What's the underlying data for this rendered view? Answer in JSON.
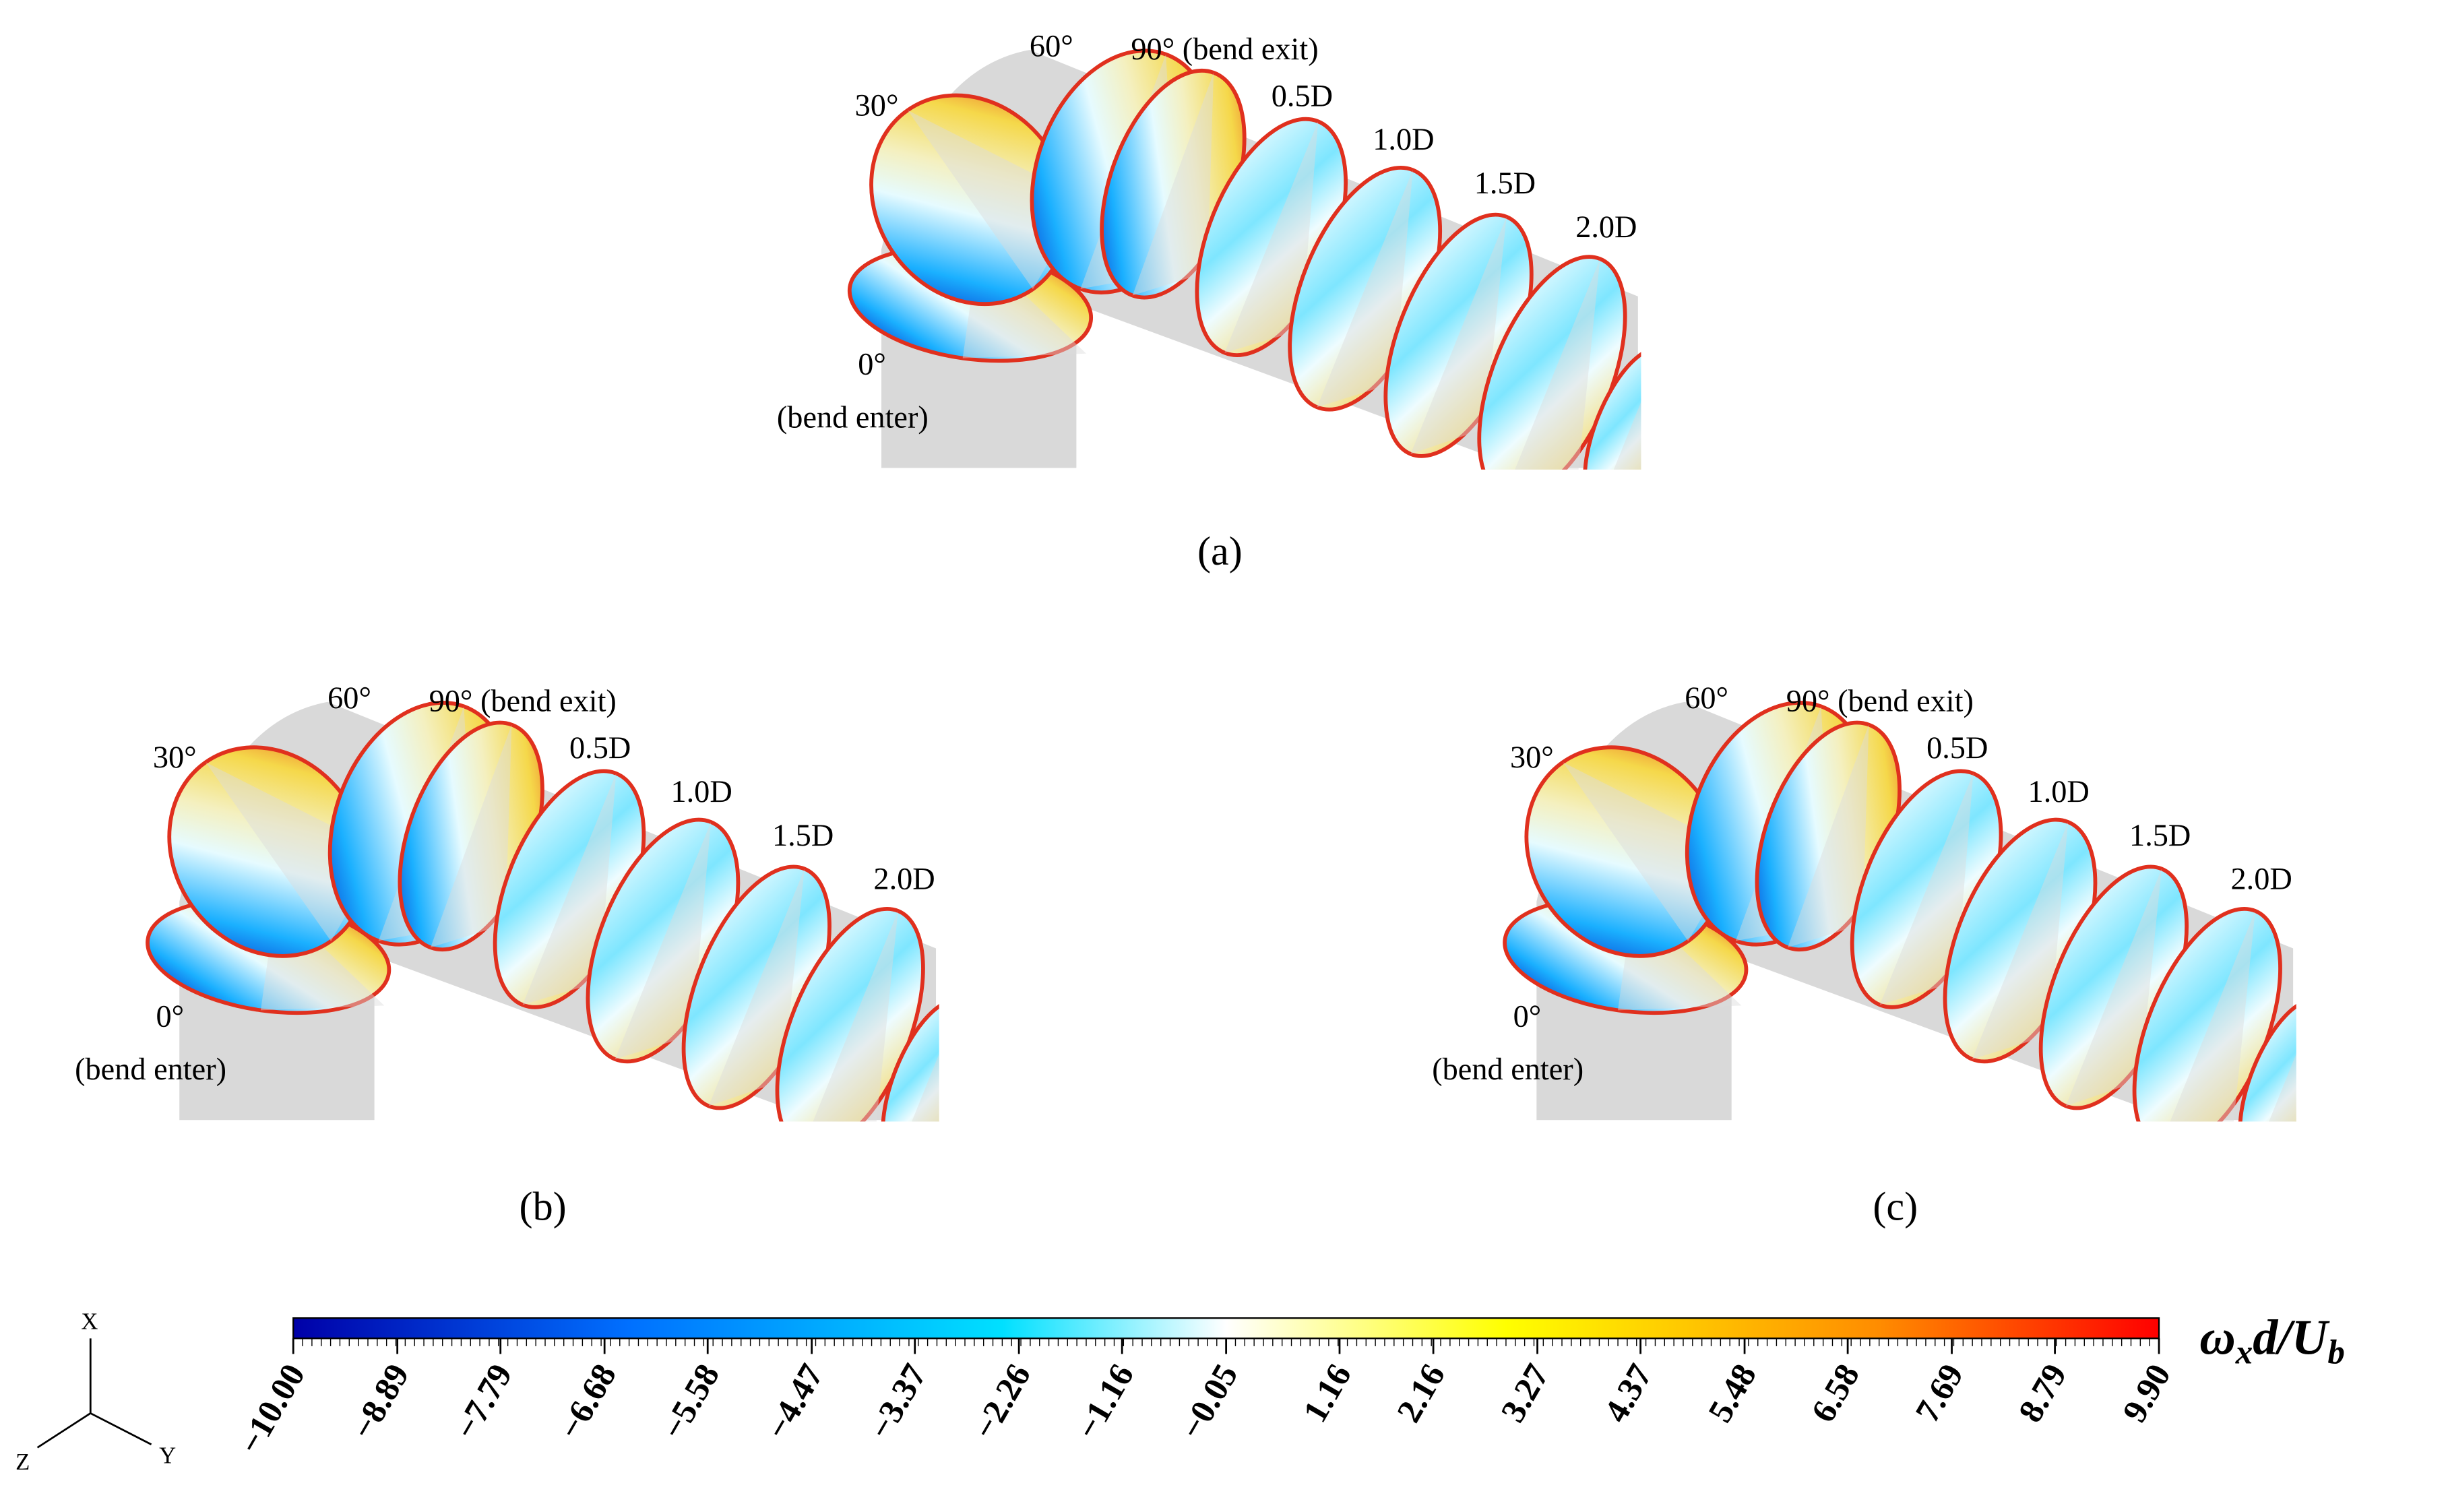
{
  "panels": [
    {
      "label": "(a)",
      "sections": [
        "0°",
        "(bend enter)",
        "30°",
        "60°",
        "90° (bend exit)",
        "0.5D",
        "1.0D",
        "1.5D",
        "2.0D"
      ]
    },
    {
      "label": "(b)",
      "sections": [
        "0°",
        "(bend enter)",
        "30°",
        "60°",
        "90° (bend exit)",
        "0.5D",
        "1.0D",
        "1.5D",
        "2.0D"
      ]
    },
    {
      "label": "(c)",
      "sections": [
        "0°",
        "(bend enter)",
        "30°",
        "60°",
        "90° (bend exit)",
        "0.5D",
        "1.0D",
        "1.5D",
        "2.0D"
      ]
    }
  ],
  "colorbar": {
    "label": [
      "ω",
      "x",
      "d/U",
      "b"
    ],
    "lim": [
      -10,
      9.9
    ],
    "ticks": [
      {
        "value": -10,
        "label": "−10.00"
      },
      {
        "value": -8.89,
        "label": "−8.89"
      },
      {
        "value": -7.79,
        "label": "−7.79"
      },
      {
        "value": -6.68,
        "label": "−6.68"
      },
      {
        "value": -5.58,
        "label": "−5.58"
      },
      {
        "value": -4.47,
        "label": "−4.47"
      },
      {
        "value": -3.37,
        "label": "−3.37"
      },
      {
        "value": -2.26,
        "label": "−2.26"
      },
      {
        "value": -1.16,
        "label": "−1.16"
      },
      {
        "value": -0.05,
        "label": "−0.05"
      },
      1.16,
      2.16,
      3.27,
      4.37,
      5.48,
      6.58,
      7.69,
      8.79,
      {
        "value": 9.9,
        "label": "9.90"
      }
    ]
  },
  "axes": {
    "x": "X",
    "y": "Y",
    "z": "Z"
  }
}
